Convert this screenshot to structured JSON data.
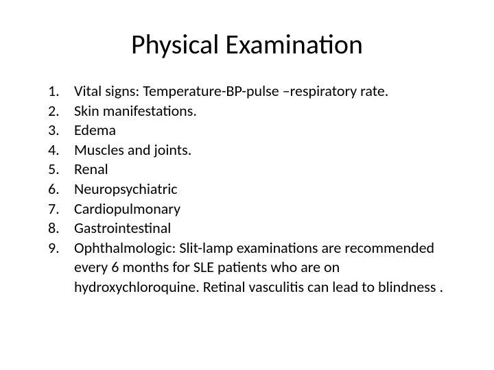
{
  "title": "Physical Examination",
  "items": [
    {
      "num": "1.",
      "text": "Vital signs: Temperature-BP-pulse –respiratory rate."
    },
    {
      "num": "2.",
      "text": "Skin manifestations."
    },
    {
      "num": "3.",
      "text": "Edema"
    },
    {
      "num": "4.",
      "text": "Muscles and joints."
    },
    {
      "num": "5.",
      "text": "Renal"
    },
    {
      "num": "6.",
      "text": "Neuropsychiatric"
    },
    {
      "num": "7.",
      "text": "Cardiopulmonary"
    },
    {
      "num": "8.",
      "text": "Gastrointestinal"
    },
    {
      "num": "9.",
      "text": "Ophthalmologic: Slit-lamp examinations are recommended every 6 months for SLE patients who are on hydroxychloroquine. Retinal vasculitis can lead to blindness ."
    }
  ],
  "style": {
    "background_color": "#ffffff",
    "text_color": "#000000",
    "title_fontsize": 40,
    "body_fontsize": 22,
    "font_family": "Calibri"
  }
}
